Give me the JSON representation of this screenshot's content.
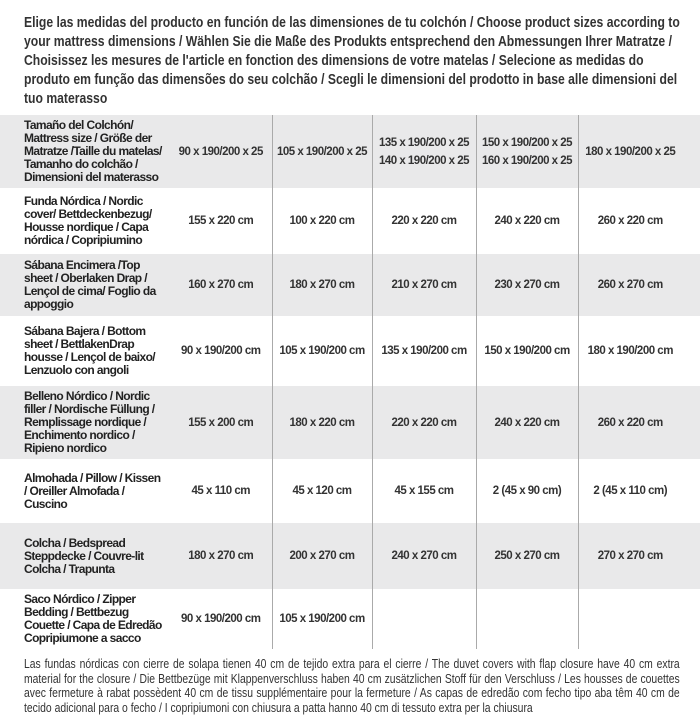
{
  "intro": "Elige las medidas del producto en función de las dimensiones de tu colchón / Choose product sizes according to your mattress dimensions / Wählen Sie die Maße des Produkts entsprechend den Abmessungen Ihrer Matratze / Choisissez les mesures de l'article en fonction des dimensions de votre matelas / Selecione as medidas do produto em função das dimensões do seu colchão / Scegli le dimensioni del prodotto in base alle dimensioni del tuo materasso",
  "table": {
    "header": {
      "label": "Tamaño del Colchón/ Mattress size / Größe der Matratze /Taille du matelas/ Tamanho do colchão / Dimensioni del materasso",
      "sizes": [
        [
          "90 x 190/200 x 25"
        ],
        [
          "105 x 190/200 x 25"
        ],
        [
          "135 x 190/200 x 25",
          "140 x 190/200 x 25"
        ],
        [
          "150 x 190/200 x 25",
          "160 x 190/200 x 25"
        ],
        [
          "180 x 190/200 x 25"
        ]
      ]
    },
    "rows": [
      {
        "label": "Funda Nórdica /  Nordic cover/ Bettdeckenbezug/ Housse nordique  / Capa nórdica / Copripiumino",
        "values": [
          "155 x 220 cm",
          "100 x 220 cm",
          "220 x 220 cm",
          "240 x 220 cm",
          "260 x 220 cm"
        ]
      },
      {
        "label": "Sábana Encimera /Top sheet / Oberlaken Drap / Lençol de cima/ Foglio da appoggio",
        "values": [
          "160 x 270 cm",
          "180 x 270 cm",
          "210 x 270 cm",
          "230 x 270 cm",
          "260 x 270 cm"
        ]
      },
      {
        "label": "Sábana Bajera / Bottom sheet / BettlakenDrap housse / Lençol de baixo/ Lenzuolo con angoli",
        "values": [
          "90 x 190/200 cm",
          "105 x 190/200 cm",
          "135 x 190/200 cm",
          "150 x 190/200 cm",
          "180 x 190/200 cm"
        ]
      },
      {
        "label": "Belleno Nórdico / Nordic filler / Nordische Füllung / Remplissage nordique / Enchimento nordico / Ripieno nordico",
        "values": [
          "155 x 200 cm",
          "180 x 220 cm",
          "220 x 220 cm",
          "240 x 220 cm",
          "260 x 220 cm"
        ]
      },
      {
        "label": "Almohada  / Pillow / Kissen / Oreiller Almofada / Cuscino",
        "values": [
          "45 x 110 cm",
          "45 x 120 cm",
          "45 x 155 cm",
          "2 (45 x 90 cm)",
          "2 (45 x 110 cm)"
        ]
      },
      {
        "label": "Colcha / Bedspread Steppdecke / Couvre-lit Colcha / Trapunta",
        "values": [
          "180 x 270 cm",
          "200 x 270 cm",
          "240 x 270 cm",
          "250 x 270 cm",
          "270 x 270 cm"
        ]
      },
      {
        "label": "Saco Nórdico / Zipper Bedding / Bettbezug Couette  / Capa de Edredão Copripiumone a sacco",
        "values": [
          "90 x 190/200 cm",
          "105 x 190/200 cm",
          "",
          "",
          ""
        ]
      }
    ]
  },
  "footnote": "Las fundas nórdicas con cierre de solapa tienen 40 cm de tejido extra para el cierre  /  The duvet covers with flap closure have 40 cm extra material for the closure / Die Bettbezüge mit Klappenverschluss haben 40 cm zusätzlichen Stoff für den Verschluss / Les housses de couettes avec fermeture à rabat possèdent 40 cm de tissu supplémentaire pour la fermeture / As capas de edredão com fecho tipo aba têm 40 cm de tecido adicional para o fecho / I copripiumoni con chiusura a patta hanno 40 cm di tessuto extra per la chiusura",
  "colors": {
    "row_shade": "#e9e9ea",
    "text": "#333333",
    "divider": "#aaaaaa"
  }
}
